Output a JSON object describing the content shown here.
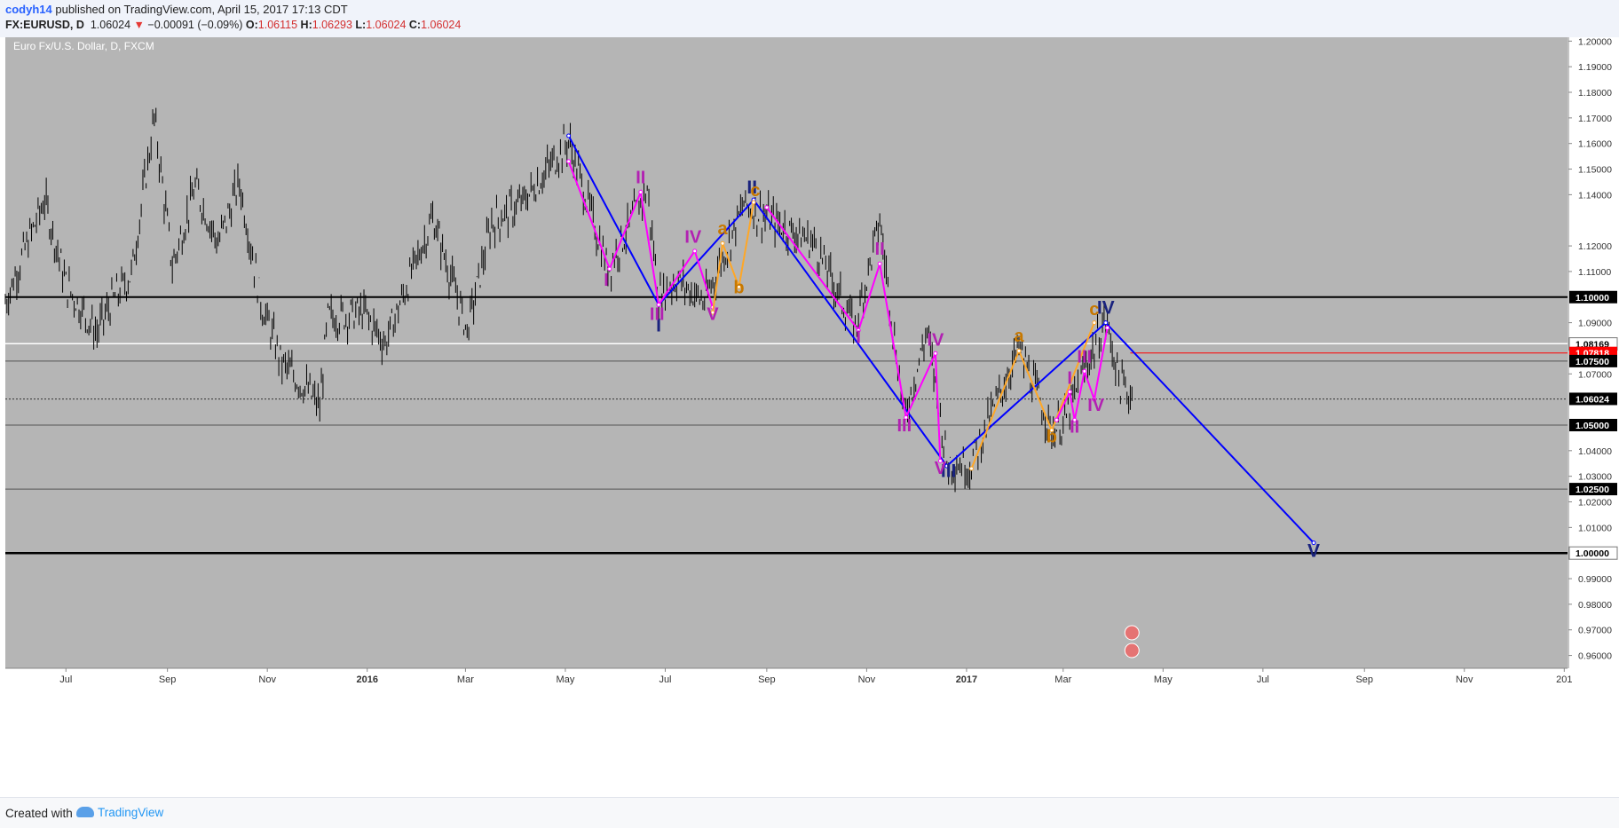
{
  "header": {
    "user": "codyh14",
    "published": " published on TradingView.com, April 15, 2017 17:13 CDT",
    "symbol": "FX:EURUSD, D",
    "last": "1.06024",
    "change": "−0.00091 (−0.09%)",
    "o_label": "O:",
    "o_value": "1.06115",
    "h_label": "H:",
    "h_value": "1.06293",
    "l_label": "L:",
    "l_value": "1.06024",
    "c_label": "C:",
    "c_value": "1.06024"
  },
  "footer": {
    "created_with": "Created with",
    "brand": "TradingView"
  },
  "colors": {
    "chart_bg": "#b5b5b5",
    "axis_bg": "#ffffff",
    "impulse": "#0000ff",
    "subwave": "#ff00ff",
    "correction": "#ffa726",
    "label_blue": "#1a237e",
    "label_magenta": "#b221b2",
    "label_orange": "#c77800",
    "red_marker": "#ff0000"
  },
  "chart_data": {
    "type": "line",
    "title": "Euro Fx/U.S. Dollar, D, FXCM",
    "ylim": [
      0.955,
      1.2015
    ],
    "y_ticks": [
      "1.20000",
      "1.19000",
      "1.18000",
      "1.17000",
      "1.16000",
      "1.15000",
      "1.14000",
      "1.12000",
      "1.11000",
      "1.09000",
      "1.07000",
      "1.04000",
      "1.03000",
      "1.02000",
      "1.01000",
      "0.99000",
      "0.98000",
      "0.97000",
      "0.96000"
    ],
    "x_ticks": [
      "Jul",
      "Sep",
      "Nov",
      "2016",
      "Mar",
      "May",
      "Jul",
      "Sep",
      "Nov",
      "2017",
      "Mar",
      "May",
      "Jul",
      "Sep",
      "Nov",
      "201"
    ],
    "x_tick_dates": [
      "2015-07-01",
      "2015-09-01",
      "2015-11-01",
      "2016-01-01",
      "2016-03-01",
      "2016-05-01",
      "2016-07-01",
      "2016-09-01",
      "2016-11-01",
      "2017-01-01",
      "2017-03-01",
      "2017-05-01",
      "2017-07-01",
      "2017-09-01",
      "2017-11-01",
      "2018-01-01"
    ],
    "price_labels": [
      {
        "label": "1.10000",
        "value": 1.1,
        "style": "black"
      },
      {
        "label": "1.08169",
        "value": 1.08169,
        "style": "white"
      },
      {
        "label": "1.07818",
        "value": 1.07818,
        "style": "red"
      },
      {
        "label": "1.07500",
        "value": 1.075,
        "style": "black"
      },
      {
        "label": "1.06024",
        "value": 1.06024,
        "style": "black"
      },
      {
        "label": "1.05000",
        "value": 1.05,
        "style": "black"
      },
      {
        "label": "1.02500",
        "value": 1.025,
        "style": "black"
      },
      {
        "label": "1.00000",
        "value": 1.0,
        "style": "white"
      }
    ],
    "horizontal_lines": [
      {
        "value": 1.1,
        "color": "#000000",
        "width": 2
      },
      {
        "value": 1.0818,
        "color": "#ffffff",
        "width": 1.5
      },
      {
        "value": 1.075,
        "color": "#555555",
        "width": 1
      },
      {
        "value": 1.0602,
        "color": "#333333",
        "width": 1,
        "dash": true
      },
      {
        "value": 1.05,
        "color": "#555555",
        "width": 1
      },
      {
        "value": 1.025,
        "color": "#555555",
        "width": 1
      },
      {
        "value": 1.0,
        "color": "#000000",
        "width": 2.5
      }
    ],
    "red_segment": {
      "from": "2017-04-11",
      "to": "2018-01-01",
      "value": 1.07818
    },
    "price_path": [
      [
        "2015-05-25",
        1.098
      ],
      [
        "2015-06-05",
        1.117
      ],
      [
        "2015-06-18",
        1.138
      ],
      [
        "2015-07-01",
        1.105
      ],
      [
        "2015-07-20",
        1.086
      ],
      [
        "2015-07-28",
        1.097
      ],
      [
        "2015-08-10",
        1.109
      ],
      [
        "2015-08-24",
        1.17
      ],
      [
        "2015-09-04",
        1.112
      ],
      [
        "2015-09-18",
        1.143
      ],
      [
        "2015-10-02",
        1.121
      ],
      [
        "2015-10-15",
        1.145
      ],
      [
        "2015-10-28",
        1.098
      ],
      [
        "2015-11-10",
        1.074
      ],
      [
        "2015-11-25",
        1.064
      ],
      [
        "2015-12-03",
        1.057
      ],
      [
        "2015-12-08",
        1.092
      ],
      [
        "2015-12-30",
        1.094
      ],
      [
        "2016-01-12",
        1.082
      ],
      [
        "2016-02-10",
        1.131
      ],
      [
        "2016-03-02",
        1.087
      ],
      [
        "2016-03-17",
        1.129
      ],
      [
        "2016-04-05",
        1.137
      ],
      [
        "2016-05-03",
        1.161
      ],
      [
        "2016-05-27",
        1.111
      ],
      [
        "2016-06-20",
        1.142
      ],
      [
        "2016-06-27",
        1.1
      ],
      [
        "2016-07-08",
        1.107
      ],
      [
        "2016-07-25",
        1.098
      ],
      [
        "2016-08-18",
        1.136
      ],
      [
        "2016-09-30",
        1.121
      ],
      [
        "2016-10-25",
        1.088
      ],
      [
        "2016-11-09",
        1.13
      ],
      [
        "2016-11-24",
        1.053
      ],
      [
        "2016-12-08",
        1.087
      ],
      [
        "2016-12-20",
        1.036
      ],
      [
        "2017-01-03",
        1.034
      ],
      [
        "2017-02-02",
        1.08
      ],
      [
        "2017-02-22",
        1.048
      ],
      [
        "2017-03-01",
        1.05
      ],
      [
        "2017-03-16",
        1.074
      ],
      [
        "2017-03-27",
        1.091
      ],
      [
        "2017-04-05",
        1.066
      ],
      [
        "2017-04-13",
        1.06
      ]
    ],
    "drawings": [
      {
        "name": "primary-impulse",
        "color": "#0000ff",
        "points": [
          [
            "2016-05-03",
            1.163
          ],
          [
            "2016-06-27",
            1.097
          ],
          [
            "2016-08-24",
            1.138
          ],
          [
            "2016-12-20",
            1.034
          ],
          [
            "2017-03-27",
            1.09
          ],
          [
            "2017-08-01",
            1.004
          ]
        ]
      },
      {
        "name": "wave-i-subwaves",
        "color": "#ff00ff",
        "points": [
          [
            "2016-05-03",
            1.153
          ],
          [
            "2016-05-28",
            1.111
          ],
          [
            "2016-06-16",
            1.141
          ],
          [
            "2016-06-27",
            1.097
          ],
          [
            "2016-07-19",
            1.118
          ],
          [
            "2016-07-30",
            1.096
          ]
        ]
      },
      {
        "name": "wave-ii-abc",
        "color": "#ffa726",
        "points": [
          [
            "2016-07-30",
            1.094
          ],
          [
            "2016-08-05",
            1.121
          ],
          [
            "2016-08-15",
            1.104
          ],
          [
            "2016-08-24",
            1.137
          ]
        ]
      },
      {
        "name": "wave-iii-subwaves",
        "color": "#ff00ff",
        "points": [
          [
            "2016-09-01",
            1.135
          ],
          [
            "2016-10-27",
            1.087
          ],
          [
            "2016-11-09",
            1.113
          ],
          [
            "2016-11-25",
            1.053
          ],
          [
            "2016-12-13",
            1.078
          ],
          [
            "2016-12-16",
            1.036
          ]
        ]
      },
      {
        "name": "wave-iv-abc",
        "color": "#ffa726",
        "points": [
          [
            "2017-01-04",
            1.033
          ],
          [
            "2017-02-02",
            1.079
          ],
          [
            "2017-02-22",
            1.048
          ],
          [
            "2017-03-20",
            1.09
          ]
        ]
      },
      {
        "name": "wave-iv-subwaves",
        "color": "#ff00ff",
        "points": [
          [
            "2017-02-25",
            1.052
          ],
          [
            "2017-03-05",
            1.063
          ],
          [
            "2017-03-08",
            1.052
          ],
          [
            "2017-03-14",
            1.071
          ],
          [
            "2017-03-20",
            1.06
          ],
          [
            "2017-03-28",
            1.088
          ]
        ]
      }
    ],
    "wave_labels": [
      {
        "text": "I",
        "date": "2016-06-27",
        "value": 1.0865,
        "color": "#1a237e",
        "size": 21
      },
      {
        "text": "II",
        "date": "2016-08-23",
        "value": 1.1405,
        "color": "#1a237e",
        "size": 21
      },
      {
        "text": "III",
        "date": "2016-12-21",
        "value": 1.0297,
        "color": "#1a237e",
        "size": 21
      },
      {
        "text": "IV",
        "date": "2017-03-27",
        "value": 1.0935,
        "color": "#1a237e",
        "size": 21
      },
      {
        "text": "V",
        "date": "2017-08-01",
        "value": 0.9985,
        "color": "#1a237e",
        "size": 21
      },
      {
        "text": "I",
        "date": "2016-05-26",
        "value": 1.1045,
        "color": "#b221b2",
        "size": 20
      },
      {
        "text": "II",
        "date": "2016-06-16",
        "value": 1.1445,
        "color": "#b221b2",
        "size": 20
      },
      {
        "text": "III",
        "date": "2016-06-26",
        "value": 1.091,
        "color": "#b221b2",
        "size": 20
      },
      {
        "text": "IV",
        "date": "2016-07-18",
        "value": 1.1213,
        "color": "#b221b2",
        "size": 20
      },
      {
        "text": "V",
        "date": "2016-07-30",
        "value": 1.091,
        "color": "#b221b2",
        "size": 20
      },
      {
        "text": "a",
        "date": "2016-08-05",
        "value": 1.1245,
        "color": "#c77800",
        "size": 20
      },
      {
        "text": "b",
        "date": "2016-08-15",
        "value": 1.1015,
        "color": "#c77800",
        "size": 20
      },
      {
        "text": "c",
        "date": "2016-08-25",
        "value": 1.1395,
        "color": "#c77800",
        "size": 20
      },
      {
        "text": "I",
        "date": "2016-10-27",
        "value": 1.082,
        "color": "#b221b2",
        "size": 20
      },
      {
        "text": "II",
        "date": "2016-11-09",
        "value": 1.1165,
        "color": "#b221b2",
        "size": 20
      },
      {
        "text": "III",
        "date": "2016-11-24",
        "value": 1.0475,
        "color": "#b221b2",
        "size": 20
      },
      {
        "text": "IV",
        "date": "2016-12-13",
        "value": 1.081,
        "color": "#b221b2",
        "size": 20
      },
      {
        "text": "V",
        "date": "2016-12-16",
        "value": 1.031,
        "color": "#b221b2",
        "size": 20
      },
      {
        "text": "a",
        "date": "2017-02-02",
        "value": 1.0825,
        "color": "#c77800",
        "size": 20
      },
      {
        "text": "b",
        "date": "2017-02-22",
        "value": 1.0433,
        "color": "#c77800",
        "size": 20
      },
      {
        "text": "c",
        "date": "2017-03-20",
        "value": 1.093,
        "color": "#c77800",
        "size": 20
      },
      {
        "text": "I",
        "date": "2017-03-05",
        "value": 1.0662,
        "color": "#b221b2",
        "size": 20
      },
      {
        "text": "II",
        "date": "2017-03-08",
        "value": 1.047,
        "color": "#b221b2",
        "size": 20
      },
      {
        "text": "III",
        "date": "2017-03-14",
        "value": 1.0745,
        "color": "#b221b2",
        "size": 20
      },
      {
        "text": "IV",
        "date": "2017-03-21",
        "value": 1.0555,
        "color": "#b221b2",
        "size": 20
      }
    ]
  }
}
